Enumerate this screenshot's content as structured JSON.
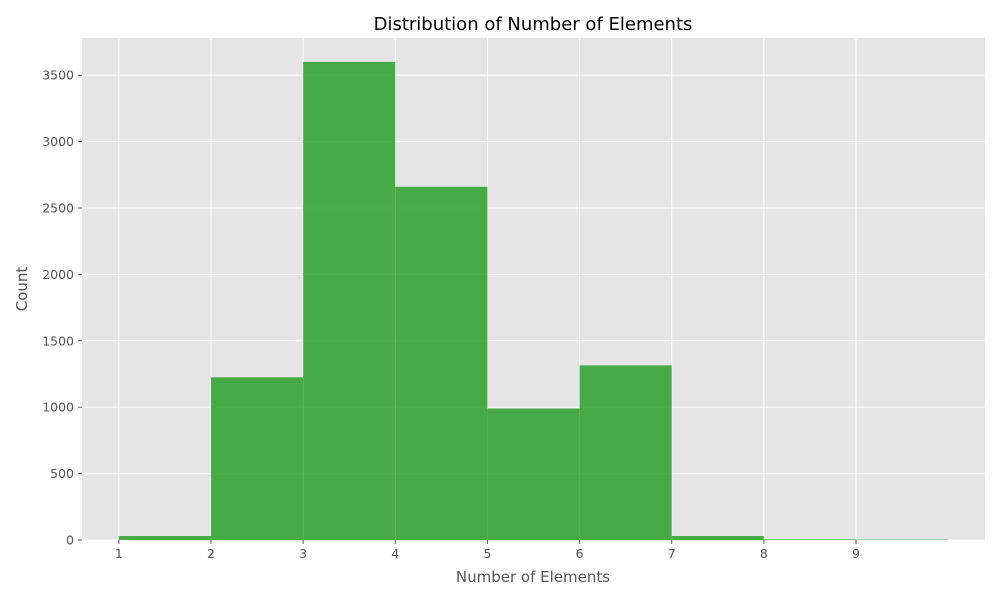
{
  "chart_data": {
    "type": "bar",
    "title": "Distribution of Number of Elements",
    "xlabel": "Number of Elements",
    "ylabel": "Count",
    "bins": [
      {
        "start": 1,
        "end": 2,
        "value": 30
      },
      {
        "start": 2,
        "end": 3,
        "value": 1225
      },
      {
        "start": 3,
        "end": 4,
        "value": 3600
      },
      {
        "start": 4,
        "end": 5,
        "value": 2660
      },
      {
        "start": 5,
        "end": 6,
        "value": 990
      },
      {
        "start": 6,
        "end": 7,
        "value": 1315
      },
      {
        "start": 7,
        "end": 8,
        "value": 30
      },
      {
        "start": 8,
        "end": 9,
        "value": 5
      },
      {
        "start": 9,
        "end": 10,
        "value": 3
      }
    ],
    "x_ticks": [
      1,
      2,
      3,
      4,
      5,
      6,
      7,
      8,
      9
    ],
    "y_ticks": [
      0,
      500,
      1000,
      1500,
      2000,
      2500,
      3000,
      3500
    ],
    "xlim": [
      0.6,
      10.4
    ],
    "ylim": [
      0,
      3780
    ],
    "grid": true,
    "colors": {
      "bar": "#2ca02c",
      "plot_background": "#e5e5e5",
      "grid": "#ffffff"
    }
  }
}
